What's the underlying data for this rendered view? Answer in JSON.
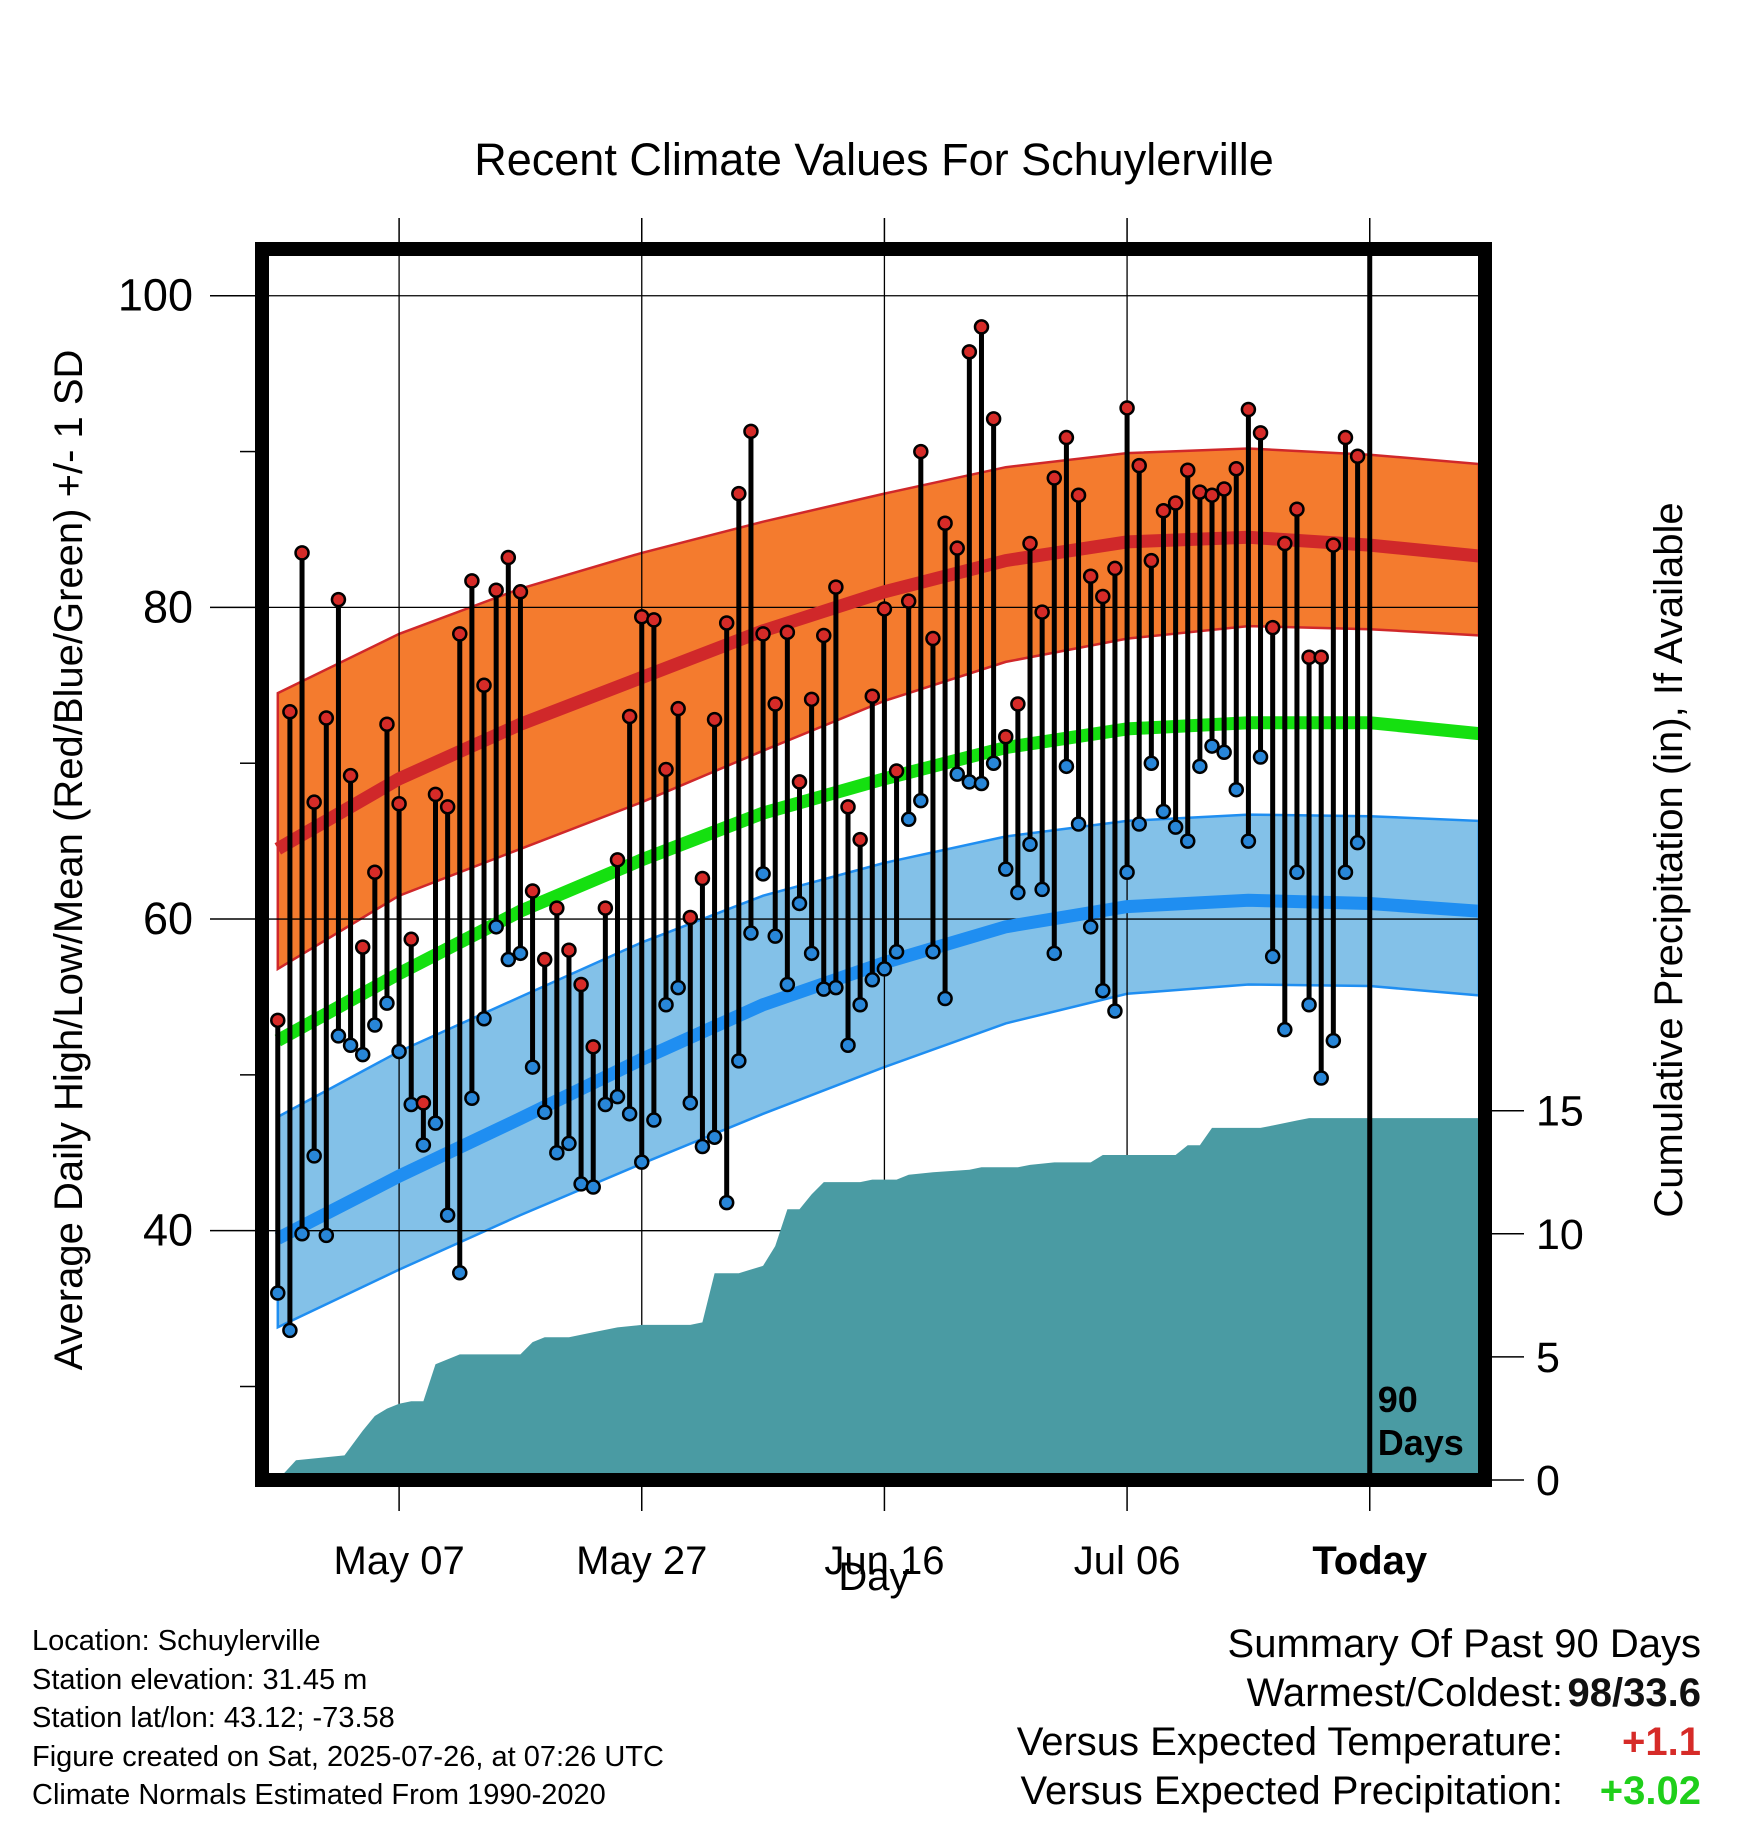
{
  "chart_data": {
    "type": "line",
    "title": "Recent Climate Values For Schuylerville",
    "xlabel": "Day",
    "ylabel": "Average Daily High/Low/Mean (Red/Blue/Green) +/- 1 SD",
    "y2label": "Cumulative Precipitation (in), If Available",
    "x_tick_labels": [
      "May 07",
      "May 27",
      "Jun 16",
      "Jul 06",
      "Today"
    ],
    "x_tick_days": [
      10,
      30,
      50,
      70,
      90
    ],
    "xlim": [
      -1.3,
      99.5
    ],
    "y_ticks": [
      40,
      60,
      80,
      100
    ],
    "ylim": [
      24,
      103
    ],
    "y2_ticks": [
      0,
      5,
      10,
      15
    ],
    "y2lim": [
      0,
      50
    ],
    "grid": true,
    "today_marker_label": "90\nDays",
    "colors": {
      "high_band": "#f47b2e",
      "high_mean": "#d0282a",
      "low_band": "#83c1e8",
      "low_mean": "#1f8ef1",
      "mean_line": "#15e010",
      "precip": "#4a9ba3",
      "high_dot": "#d62b28",
      "low_dot": "#2886d8"
    },
    "normals": {
      "days": [
        0,
        10,
        20,
        30,
        40,
        50,
        60,
        70,
        80,
        90,
        99
      ],
      "high_mean": [
        64.5,
        69.0,
        72.5,
        75.5,
        78.5,
        81.0,
        83.0,
        84.2,
        84.5,
        84.0,
        83.3
      ],
      "high_upper": [
        74.5,
        78.3,
        81.2,
        83.5,
        85.5,
        87.3,
        89.0,
        89.9,
        90.2,
        89.8,
        89.2
      ],
      "high_lower": [
        56.8,
        61.5,
        64.5,
        67.5,
        70.8,
        74.0,
        76.5,
        78.0,
        78.8,
        78.6,
        78.2
      ],
      "mean_line": [
        52.2,
        56.5,
        60.5,
        63.8,
        66.8,
        69.0,
        71.0,
        72.2,
        72.6,
        72.6,
        71.9
      ],
      "low_mean": [
        39.5,
        43.5,
        47.2,
        51.0,
        54.5,
        57.2,
        59.5,
        60.8,
        61.2,
        61.0,
        60.5
      ],
      "low_upper": [
        47.3,
        51.5,
        55.0,
        58.5,
        61.5,
        63.6,
        65.3,
        66.3,
        66.7,
        66.6,
        66.3
      ],
      "low_lower": [
        33.8,
        37.5,
        41.0,
        44.3,
        47.5,
        50.5,
        53.3,
        55.2,
        55.8,
        55.7,
        55.1
      ]
    },
    "series": [
      {
        "name": "High",
        "values": [
          53.5,
          73.3,
          83.5,
          67.5,
          72.9,
          80.5,
          69.2,
          58.2,
          63.0,
          72.5,
          67.4,
          58.7,
          48.2,
          68.0,
          67.2,
          78.3,
          81.7,
          75.0,
          81.1,
          83.2,
          81.0,
          61.8,
          57.4,
          60.7,
          58.0,
          55.8,
          51.8,
          60.7,
          63.8,
          73.0,
          79.4,
          79.2,
          69.6,
          73.5,
          60.1,
          62.6,
          72.8,
          79.0,
          87.3,
          91.3,
          78.3,
          73.8,
          78.4,
          68.8,
          74.1,
          78.2,
          81.3,
          67.2,
          65.1,
          74.3,
          79.9,
          69.5,
          80.4,
          90.0,
          78.0,
          85.4,
          83.8,
          96.4,
          98.0,
          92.1,
          71.7,
          73.8,
          84.1,
          79.7,
          88.3,
          90.9,
          87.2,
          82.0,
          80.7,
          82.5,
          92.8,
          89.1,
          83.0,
          86.2,
          86.7,
          88.8,
          87.4,
          87.2,
          87.6,
          88.9,
          92.7,
          91.2,
          78.7,
          84.1,
          86.3,
          76.8,
          76.8,
          84.0,
          90.9,
          89.7
        ]
      },
      {
        "name": "Low",
        "values": [
          36.0,
          33.6,
          39.8,
          44.8,
          39.7,
          52.5,
          51.9,
          51.3,
          53.2,
          54.6,
          51.5,
          48.1,
          45.5,
          46.9,
          41.0,
          37.3,
          48.5,
          53.6,
          59.5,
          57.4,
          57.8,
          50.5,
          47.6,
          45.0,
          45.6,
          43.0,
          42.8,
          48.1,
          48.6,
          47.5,
          44.4,
          47.1,
          54.5,
          55.6,
          48.2,
          45.4,
          46.0,
          41.8,
          50.9,
          59.1,
          62.9,
          58.9,
          55.8,
          61.0,
          57.8,
          55.5,
          55.6,
          51.9,
          54.5,
          56.1,
          56.8,
          57.9,
          66.4,
          67.6,
          57.9,
          54.9,
          69.3,
          68.8,
          68.7,
          70.0,
          63.2,
          61.7,
          64.8,
          61.9,
          57.8,
          69.8,
          66.1,
          59.5,
          55.4,
          54.1,
          63.0,
          66.1,
          70.0,
          66.9,
          65.9,
          65.0,
          69.8,
          71.1,
          70.7,
          68.3,
          65.0,
          70.4,
          57.6,
          52.9,
          63.0,
          54.5,
          49.8,
          52.2,
          63.0,
          64.9
        ]
      },
      {
        "name": "Precipitation",
        "steps": [
          [
            0,
            0
          ],
          [
            1.5,
            0.8
          ],
          [
            5.5,
            1.0
          ],
          [
            7,
            2.0
          ],
          [
            8,
            2.6
          ],
          [
            9,
            2.9
          ],
          [
            10,
            3.1
          ],
          [
            11,
            3.2
          ],
          [
            12,
            3.2
          ],
          [
            13,
            4.7
          ],
          [
            15,
            5.1
          ],
          [
            18,
            5.1
          ],
          [
            20,
            5.1
          ],
          [
            21,
            5.6
          ],
          [
            22,
            5.8
          ],
          [
            24,
            5.8
          ],
          [
            26,
            6.0
          ],
          [
            28,
            6.2
          ],
          [
            30,
            6.3
          ],
          [
            34,
            6.3
          ],
          [
            35,
            6.4
          ],
          [
            36,
            8.4
          ],
          [
            38,
            8.4
          ],
          [
            40,
            8.7
          ],
          [
            41,
            9.5
          ],
          [
            42,
            11.0
          ],
          [
            43,
            11.0
          ],
          [
            44,
            11.6
          ],
          [
            45,
            12.1
          ],
          [
            48,
            12.1
          ],
          [
            49,
            12.2
          ],
          [
            51,
            12.2
          ],
          [
            52,
            12.4
          ],
          [
            54,
            12.5
          ],
          [
            57,
            12.6
          ],
          [
            58,
            12.7
          ],
          [
            61,
            12.7
          ],
          [
            62,
            12.8
          ],
          [
            64,
            12.9
          ],
          [
            67,
            12.9
          ],
          [
            68,
            13.2
          ],
          [
            74,
            13.2
          ],
          [
            75,
            13.6
          ],
          [
            76,
            13.6
          ],
          [
            77,
            14.3
          ],
          [
            81,
            14.3
          ],
          [
            82,
            14.4
          ],
          [
            84,
            14.6
          ],
          [
            85,
            14.7
          ],
          [
            99.5,
            14.7
          ]
        ]
      }
    ]
  },
  "footer": {
    "location": "Location: Schuylerville",
    "elevation": "Station elevation: 31.45 m",
    "latlon": "Station lat/lon: 43.12; -73.58",
    "created": "Figure created on Sat, 2025-07-26, at 07:26 UTC",
    "normals": "Climate Normals Estimated From 1990-2020"
  },
  "summary": {
    "title": "Summary Of Past 90 Days",
    "warmest_label": "Warmest/Coldest:",
    "warmest_value": "98/33.6",
    "temp_label": "Versus Expected Temperature:",
    "temp_value": "+1.1",
    "temp_color": "#d62b28",
    "precip_label": "Versus Expected Precipitation:",
    "precip_value": "+3.02",
    "precip_color": "#1fcf1a"
  }
}
